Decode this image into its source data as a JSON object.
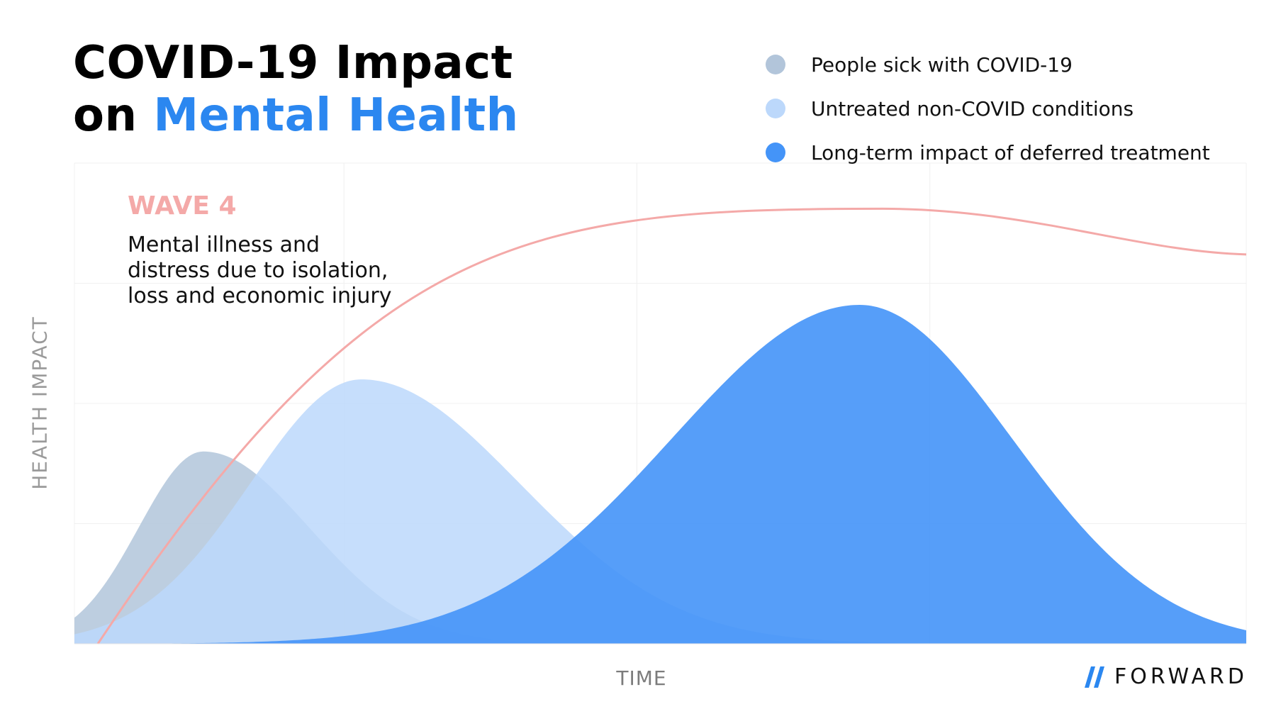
{
  "chart_data": {
    "type": "area",
    "title_line1": "COVID-19 Impact",
    "title_line2_prefix": "on ",
    "title_line2_accent": "Mental Health",
    "xlabel": "TIME",
    "ylabel": "HEALTH IMPACT",
    "x_range": [
      0,
      100
    ],
    "y_range": [
      0,
      100
    ],
    "grid": true,
    "legend_position": "top-right",
    "series": [
      {
        "name": "People sick with COVID-19",
        "color": "#b2c5da",
        "curve": {
          "peak_x": 11,
          "peak_y": 40,
          "left_width": 5.5,
          "right_width": 9
        }
      },
      {
        "name": "Untreated non-COVID conditions",
        "color": "#bcd8fb",
        "curve": {
          "peak_x": 24.5,
          "peak_y": 55,
          "left_width": 9.5,
          "right_width": 13.5
        }
      },
      {
        "name": "Long-term impact of deferred treatment",
        "color": "#4494f8",
        "curve": {
          "peak_x": 67,
          "peak_y": 70.5,
          "left_width": 16,
          "right_width": 13
        }
      }
    ],
    "line_series": {
      "name": "Wave 4",
      "color": "#f4a9a8",
      "start_x": 2,
      "start_y": 0,
      "peak_x": 69,
      "peak_y": 90.5,
      "end_x": 100,
      "end_y": 81
    },
    "annotation": {
      "title": "WAVE 4",
      "lines": [
        "Mental illness and",
        "distress due to isolation,",
        "loss and economic injury"
      ]
    }
  },
  "branding": {
    "name": "FORWARD",
    "color": "#2b87f0"
  }
}
